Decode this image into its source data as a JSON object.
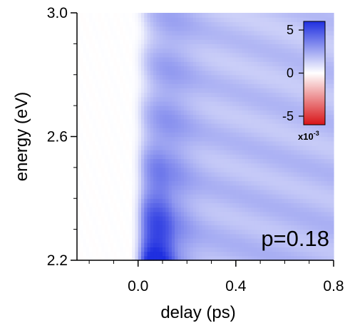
{
  "chart_data": {
    "type": "heatmap",
    "title": "",
    "xlabel": "delay (ps)",
    "ylabel": "energy (eV)",
    "xlim": [
      -0.25,
      0.8
    ],
    "ylim": [
      2.2,
      3.0
    ],
    "x_ticks": [
      0.0,
      0.4,
      0.8
    ],
    "x_tick_labels": [
      "0.0",
      "0.4",
      "0.8"
    ],
    "y_ticks": [
      2.2,
      2.6,
      3.0
    ],
    "y_tick_labels": [
      "2.2",
      "2.6",
      "3.0"
    ],
    "annotation": "p=0.18",
    "colorbar": {
      "range": [
        -6,
        6
      ],
      "ticks": [
        5,
        0,
        -5
      ],
      "tick_labels": [
        "5",
        "0",
        "-5"
      ],
      "unit_base": "x10",
      "unit_exponent": "-3",
      "colors": {
        "max": "#1f2fe0",
        "zero": "#ffffff",
        "min": "#d81418"
      }
    },
    "signal_description_values": {
      "peak_delay_ps": 0.1,
      "peak_energy_eV": 2.2,
      "peak_value": 6.0,
      "long_delay_value": 2.0
    }
  }
}
